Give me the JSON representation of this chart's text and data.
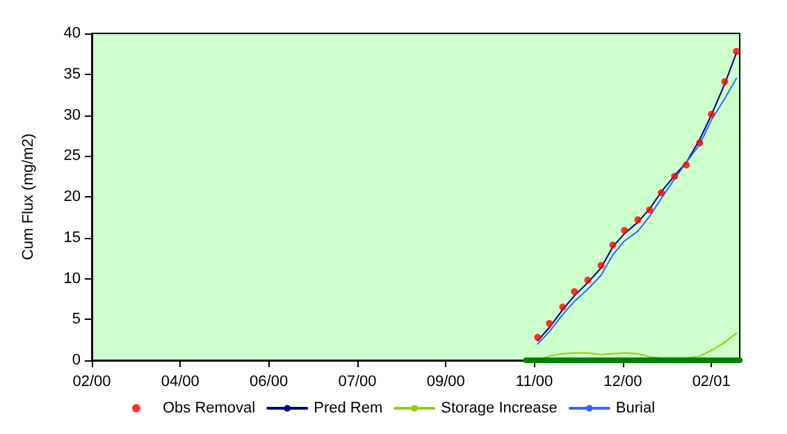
{
  "chart_data": {
    "type": "line",
    "ylabel": "Cum Flux (mg/m2)",
    "x": [
      "2000-11-09",
      "2000-11-16",
      "2000-11-24",
      "2000-12-01",
      "2000-12-09",
      "2000-12-17",
      "2000-12-24",
      "2000-12-31",
      "2001-01-08",
      "2001-01-15",
      "2001-01-22",
      "2001-01-30",
      "2001-02-06",
      "2001-02-14",
      "2001-02-21",
      "2001-03-01",
      "2001-03-08"
    ],
    "xlim": [
      "2000-02-16",
      "2001-03-10"
    ],
    "xticks": [
      {
        "value": "2000-02-16",
        "label": "02/00"
      },
      {
        "value": "2000-04-09",
        "label": "04/00"
      },
      {
        "value": "2000-06-01",
        "label": "06/00"
      },
      {
        "value": "2000-07-24",
        "label": "07/00"
      },
      {
        "value": "2000-09-15",
        "label": "09/00"
      },
      {
        "value": "2000-11-07",
        "label": "11/00"
      },
      {
        "value": "2000-12-30",
        "label": "12/00"
      },
      {
        "value": "2001-02-21",
        "label": "02/01"
      }
    ],
    "ylim": [
      0,
      40
    ],
    "yticks": [
      0,
      5,
      10,
      15,
      20,
      25,
      30,
      35,
      40
    ],
    "legend": "bottom",
    "series": [
      {
        "name": "Obs Removal",
        "type": "scatter",
        "marker": "circle",
        "color": "#ff0000",
        "values": [
          2.8,
          4.5,
          6.5,
          8.4,
          9.8,
          11.6,
          14.1,
          15.9,
          17.2,
          18.4,
          20.5,
          22.5,
          23.9,
          26.6,
          30.1,
          34.1,
          37.8
        ]
      },
      {
        "name": "Pred Rem",
        "marker": "none",
        "color": "#000080",
        "values": [
          2.4,
          4.0,
          6.2,
          7.9,
          9.5,
          11.3,
          13.9,
          15.5,
          16.9,
          18.5,
          20.6,
          22.6,
          24.2,
          27.0,
          30.0,
          33.8,
          37.6
        ]
      },
      {
        "name": "Storage Increase",
        "marker": "none",
        "color": "#99cc00",
        "values": [
          0.1,
          0.5,
          0.8,
          0.9,
          0.9,
          0.7,
          0.8,
          0.9,
          0.8,
          0.4,
          0.3,
          0.3,
          0.3,
          0.5,
          1.2,
          2.2,
          3.3
        ]
      },
      {
        "name": "Burial",
        "marker": "none",
        "color": "#3366ff",
        "values": [
          2.0,
          3.5,
          5.6,
          7.2,
          8.7,
          10.4,
          12.9,
          14.6,
          15.8,
          17.6,
          19.8,
          22.2,
          24.2,
          26.4,
          29.4,
          32.0,
          34.5
        ]
      },
      {
        "marker": "none",
        "color": "#008000",
        "x": [
          "2000-11-02",
          "2001-03-10"
        ],
        "values": [
          0,
          0
        ]
      }
    ]
  }
}
